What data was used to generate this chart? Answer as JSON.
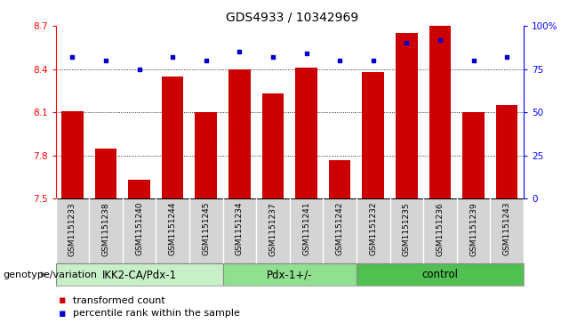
{
  "title": "GDS4933 / 10342969",
  "samples": [
    "GSM1151233",
    "GSM1151238",
    "GSM1151240",
    "GSM1151244",
    "GSM1151245",
    "GSM1151234",
    "GSM1151237",
    "GSM1151241",
    "GSM1151242",
    "GSM1151232",
    "GSM1151235",
    "GSM1151236",
    "GSM1151239",
    "GSM1151243"
  ],
  "bar_values": [
    8.11,
    7.85,
    7.63,
    8.35,
    8.1,
    8.4,
    8.23,
    8.41,
    7.77,
    8.38,
    8.65,
    8.7,
    8.1,
    8.15
  ],
  "percentile_values": [
    82,
    80,
    75,
    82,
    80,
    85,
    82,
    84,
    80,
    80,
    90,
    92,
    80,
    82
  ],
  "groups": [
    {
      "label": "IKK2-CA/Pdx-1",
      "start": 0,
      "end": 5,
      "color": "#c8f0c8"
    },
    {
      "label": "Pdx-1+/-",
      "start": 5,
      "end": 9,
      "color": "#90e090"
    },
    {
      "label": "control",
      "start": 9,
      "end": 14,
      "color": "#50c050"
    }
  ],
  "ymin": 7.5,
  "ymax": 8.7,
  "y2min": 0,
  "y2max": 100,
  "yticks": [
    7.5,
    7.8,
    8.1,
    8.4,
    8.7
  ],
  "y2ticks": [
    0,
    25,
    50,
    75,
    100
  ],
  "bar_color": "#cc0000",
  "dot_color": "#0000cc",
  "bar_width": 0.65,
  "grid_color": "#000000",
  "bg_plot": "#ffffff",
  "bg_xtick": "#d4d4d4",
  "legend_bar_label": "transformed count",
  "legend_dot_label": "percentile rank within the sample",
  "xlabel_left": "genotype/variation",
  "title_fontsize": 10,
  "tick_fontsize": 7.5,
  "label_fontsize": 8,
  "group_fontsize": 8.5,
  "sample_fontsize": 6.5
}
